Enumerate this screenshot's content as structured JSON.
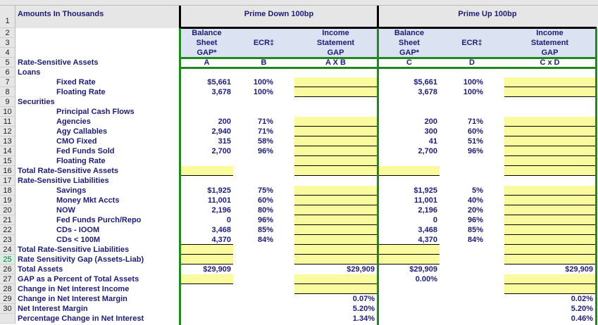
{
  "title_cell": "Amounts In Thousands",
  "group_headers": [
    "Prime Down 100bp",
    "Prime Up 100bp"
  ],
  "column_headers": [
    {
      "lines": [
        "Balance",
        "Sheet",
        "GAP*"
      ],
      "letter": "A"
    },
    {
      "lines": [
        "",
        "ECR‡",
        ""
      ],
      "letter": "B"
    },
    {
      "lines": [
        "Income",
        "Statement",
        "GAP"
      ],
      "letter": "A X B"
    },
    {
      "lines": [
        "Balance",
        "Sheet",
        "GAP*"
      ],
      "letter": "C"
    },
    {
      "lines": [
        "",
        "ECR‡",
        ""
      ],
      "letter": "D"
    },
    {
      "lines": [
        "Income",
        "Statement",
        "GAP"
      ],
      "letter": "C x D"
    }
  ],
  "selected_row": "25",
  "colors": {
    "label_text": "#1c1c78",
    "input_fill": "#fafa9e",
    "header_fill": "#dbe2f1",
    "section_border": "#1e8a1e"
  },
  "rows": [
    {
      "num": "5",
      "label": "Rate-Sensitive Assets",
      "indent": false,
      "values": [
        "",
        "",
        "",
        "",
        "",
        ""
      ]
    },
    {
      "num": "6",
      "label": "Loans",
      "indent": false,
      "values": [
        "",
        "",
        "",
        "",
        "",
        ""
      ]
    },
    {
      "num": "7",
      "label": "Fixed Rate",
      "indent": true,
      "values": [
        "$5,661",
        "100%",
        "",
        "$5,661",
        "100%",
        ""
      ]
    },
    {
      "num": "8",
      "label": "Floating Rate",
      "indent": true,
      "values": [
        "3,678",
        "100%",
        "",
        "3,678",
        "100%",
        ""
      ]
    },
    {
      "num": "9",
      "label": "Securities",
      "indent": false,
      "values": [
        "",
        "",
        "",
        "",
        "",
        ""
      ]
    },
    {
      "num": "10",
      "label": "Principal Cash Flows",
      "indent": true,
      "values": [
        "",
        "",
        "",
        "",
        "",
        ""
      ]
    },
    {
      "num": "11",
      "label": "Agencies",
      "indent": true,
      "values": [
        "200",
        "71%",
        "",
        "200",
        "71%",
        ""
      ]
    },
    {
      "num": "12",
      "label": "Agy Callables",
      "indent": true,
      "values": [
        "2,940",
        "71%",
        "",
        "300",
        "60%",
        ""
      ]
    },
    {
      "num": "13",
      "label": "CMO Fixed",
      "indent": true,
      "values": [
        "315",
        "58%",
        "",
        "41",
        "51%",
        ""
      ]
    },
    {
      "num": "14",
      "label": "Fed Funds Sold",
      "indent": true,
      "values": [
        "2,700",
        "96%",
        "",
        "2,700",
        "96%",
        ""
      ]
    },
    {
      "num": "15",
      "label": "Floating Rate",
      "indent": true,
      "values": [
        "",
        "",
        "",
        "",
        "",
        ""
      ]
    },
    {
      "num": "16",
      "label": "Total Rate-Sensitive Assets",
      "indent": false,
      "values": [
        "",
        "",
        "",
        "",
        "",
        ""
      ]
    },
    {
      "num": "17",
      "label": "Rate-Sensitive Liabilities",
      "indent": false,
      "values": [
        "",
        "",
        "",
        "",
        "",
        ""
      ]
    },
    {
      "num": "18",
      "label": "Savings",
      "indent": true,
      "values": [
        "$1,925",
        "75%",
        "",
        "$1,925",
        "5%",
        ""
      ]
    },
    {
      "num": "19",
      "label": "Money Mkt Accts",
      "indent": true,
      "values": [
        "11,001",
        "60%",
        "",
        "11,001",
        "40%",
        ""
      ]
    },
    {
      "num": "20",
      "label": "NOW",
      "indent": true,
      "values": [
        "2,196",
        "80%",
        "",
        "2,196",
        "20%",
        ""
      ]
    },
    {
      "num": "21",
      "label": "Fed Funds Purch/Repo",
      "indent": true,
      "values": [
        "0",
        "96%",
        "",
        "0",
        "96%",
        ""
      ]
    },
    {
      "num": "22",
      "label": "CDs - IOOM",
      "indent": true,
      "values": [
        "3,468",
        "85%",
        "",
        "3,468",
        "85%",
        ""
      ]
    },
    {
      "num": "23",
      "label": "CDs < 100M",
      "indent": true,
      "values": [
        "4,370",
        "84%",
        "",
        "4,370",
        "84%",
        ""
      ]
    },
    {
      "num": "24",
      "label": "Total Rate-Sensitive Liabilities",
      "indent": false,
      "values": [
        "",
        "",
        "",
        "",
        "",
        ""
      ]
    },
    {
      "num": "25",
      "label": "Rate Sensitivity Gap (Assets-Liab)",
      "indent": false,
      "values": [
        "",
        "",
        "",
        "",
        "",
        ""
      ]
    },
    {
      "num": "26",
      "label": "Total Assets",
      "indent": false,
      "values": [
        "$29,909",
        "",
        "$29,909",
        "$29,909",
        "",
        "$29,909"
      ]
    },
    {
      "num": "27",
      "label": "GAP as a Percent of Total Assets",
      "indent": false,
      "values": [
        "",
        "",
        "",
        "0.00%",
        "",
        ""
      ]
    },
    {
      "num": "28",
      "label": "Change in Net Interest Income",
      "indent": false,
      "values": [
        "",
        "",
        "",
        "",
        "",
        ""
      ]
    },
    {
      "num": "29",
      "label": "Change in Net Interest Margin",
      "indent": false,
      "values": [
        "",
        "",
        "0.07%",
        "",
        "",
        "0.02%"
      ]
    },
    {
      "num": "30",
      "label": "Net Interest Margin",
      "indent": false,
      "values": [
        "",
        "",
        "5.20%",
        "",
        "",
        "5.20%"
      ]
    },
    {
      "num": "",
      "label": "Percentage Change in Net Interest",
      "indent": false,
      "values": [
        "",
        "",
        "1.34%",
        "",
        "",
        "0.46%"
      ]
    }
  ],
  "input_cells": {
    "A": [
      "16",
      "24",
      "25",
      "27"
    ],
    "AxB": [
      "7",
      "8",
      "11",
      "12",
      "13",
      "14",
      "15",
      "16",
      "18",
      "19",
      "20",
      "21",
      "22",
      "23",
      "24",
      "25",
      "27",
      "28"
    ],
    "C": [
      "16",
      "24",
      "25"
    ],
    "CxD": [
      "7",
      "8",
      "11",
      "12",
      "13",
      "14",
      "15",
      "16",
      "18",
      "19",
      "20",
      "21",
      "22",
      "23",
      "24",
      "25",
      "27",
      "28"
    ]
  }
}
